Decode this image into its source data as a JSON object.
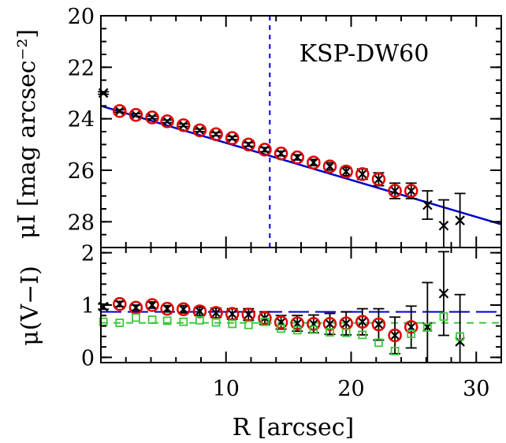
{
  "chart_data": [
    {
      "type": "scatter",
      "panel": "top",
      "label": "KSP-DW60",
      "xlabel": "R [arcsec]",
      "ylabel": "μI [mag arcsec⁻²]",
      "xlim": [
        0,
        32
      ],
      "ylim": [
        29,
        20
      ],
      "y_inverted": true,
      "yticks": [
        20,
        22,
        24,
        26,
        28
      ],
      "xticks": [
        10,
        20,
        30
      ],
      "vline_x": 13.5,
      "fit_line": {
        "x": [
          0,
          32
        ],
        "y": [
          23.5,
          28.1
        ],
        "color": "#0000c8"
      },
      "series": [
        {
          "marker": "cross",
          "color": "#000000",
          "x": [
            0.2,
            1.5,
            2.8,
            4.1,
            5.3,
            6.6,
            7.9,
            9.2,
            10.5,
            11.8,
            13.1,
            14.4,
            15.7,
            17.0,
            18.3,
            19.6,
            20.9,
            22.2,
            23.5,
            24.8,
            26.1,
            27.4,
            28.7
          ],
          "y": [
            23.0,
            23.7,
            23.85,
            23.95,
            24.1,
            24.25,
            24.45,
            24.6,
            24.75,
            25.0,
            25.2,
            25.35,
            25.5,
            25.7,
            25.85,
            26.05,
            26.15,
            26.35,
            26.8,
            26.8,
            27.35,
            28.15,
            27.95
          ],
          "yerr": [
            0.05,
            0.05,
            0.05,
            0.05,
            0.05,
            0.05,
            0.05,
            0.06,
            0.06,
            0.07,
            0.08,
            0.09,
            0.1,
            0.12,
            0.14,
            0.16,
            0.2,
            0.25,
            0.3,
            0.3,
            0.55,
            1.0,
            1.05
          ]
        },
        {
          "marker": "circle",
          "color": "#e00000",
          "x": [
            1.5,
            2.8,
            4.1,
            5.3,
            6.6,
            7.9,
            9.2,
            10.5,
            11.8,
            13.1,
            14.4,
            15.7,
            17.0,
            18.3,
            19.6,
            20.9,
            22.2,
            23.5,
            24.8
          ],
          "y": [
            23.7,
            23.85,
            23.95,
            24.1,
            24.25,
            24.45,
            24.6,
            24.75,
            25.0,
            25.2,
            25.35,
            25.5,
            25.7,
            25.85,
            26.05,
            26.15,
            26.35,
            26.8,
            26.8
          ]
        }
      ]
    },
    {
      "type": "scatter",
      "panel": "bottom",
      "xlabel": "R [arcsec]",
      "ylabel": "μ(V−I)",
      "xlim": [
        0,
        32
      ],
      "ylim": [
        -0.1,
        2.1
      ],
      "yticks": [
        0,
        1,
        2
      ],
      "xticks": [
        10,
        20,
        30
      ],
      "hlines": [
        {
          "y": 0.87,
          "color": "#0000c8",
          "style": "long-dash"
        },
        {
          "y": 0.66,
          "color": "#3cc83c",
          "style": "dash"
        }
      ],
      "series": [
        {
          "marker": "cross",
          "color": "#000000",
          "x": [
            0.2,
            1.5,
            2.8,
            4.1,
            5.3,
            6.6,
            7.9,
            9.2,
            10.5,
            11.8,
            13.1,
            14.4,
            15.7,
            17.0,
            18.3,
            19.6,
            20.9,
            22.2,
            23.5,
            24.8,
            26.1,
            27.4,
            28.7
          ],
          "y": [
            0.97,
            1.02,
            0.95,
            1.0,
            0.93,
            0.92,
            0.88,
            0.85,
            0.83,
            0.82,
            0.75,
            0.67,
            0.65,
            0.64,
            0.64,
            0.65,
            0.68,
            0.63,
            0.42,
            0.58,
            0.58,
            1.22,
            0.3
          ],
          "yerr": [
            0.05,
            0.05,
            0.05,
            0.06,
            0.06,
            0.07,
            0.08,
            0.09,
            0.1,
            0.11,
            0.12,
            0.13,
            0.15,
            0.17,
            0.2,
            0.22,
            0.25,
            0.3,
            0.35,
            0.4,
            0.85,
            0.8,
            0.9
          ]
        },
        {
          "marker": "circle",
          "color": "#e00000",
          "x": [
            1.5,
            2.8,
            4.1,
            5.3,
            6.6,
            7.9,
            9.2,
            10.5,
            11.8,
            13.1,
            14.4,
            15.7,
            17.0,
            18.3,
            19.6,
            20.9,
            22.2,
            23.5,
            24.8
          ],
          "y": [
            1.02,
            0.95,
            1.0,
            0.93,
            0.92,
            0.88,
            0.85,
            0.83,
            0.82,
            0.75,
            0.67,
            0.65,
            0.64,
            0.64,
            0.65,
            0.68,
            0.63,
            0.42,
            0.58
          ]
        },
        {
          "marker": "square",
          "color": "#3cc83c",
          "x": [
            0.2,
            1.5,
            2.8,
            4.1,
            5.3,
            6.6,
            7.9,
            9.2,
            10.5,
            11.8,
            13.1,
            14.4,
            15.7,
            17.0,
            18.3,
            19.6,
            20.9,
            22.2,
            23.5,
            24.8,
            26.1,
            27.4,
            28.7
          ],
          "y": [
            0.68,
            0.66,
            0.76,
            0.72,
            0.7,
            0.68,
            0.71,
            0.67,
            0.64,
            0.62,
            0.68,
            0.55,
            0.52,
            0.53,
            0.48,
            0.47,
            0.43,
            0.28,
            0.12,
            0.45,
            0.57,
            0.78,
            0.4
          ]
        }
      ]
    }
  ]
}
